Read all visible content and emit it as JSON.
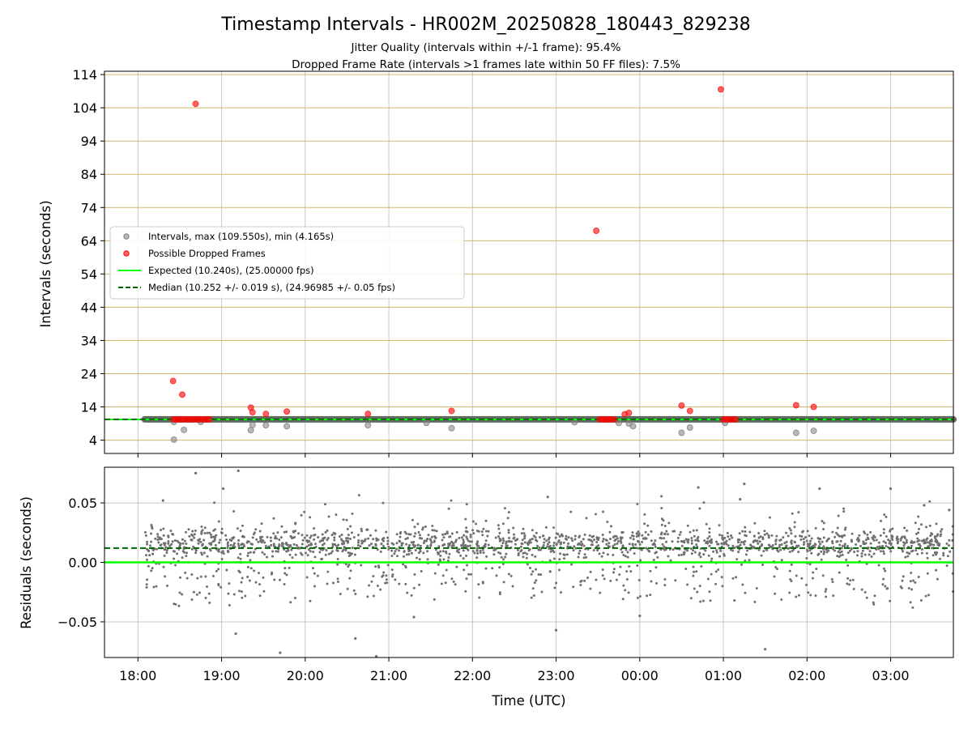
{
  "chart_data": [
    {
      "type": "scatter",
      "title": "Timestamp Intervals - HR002M_20250828_180443_829238",
      "subtitle_lines": [
        "Jitter Quality (intervals within +/-1 frame): 95.4%",
        "Dropped Frame Rate (intervals >1 frames late within 50 FF files): 7.5%"
      ],
      "xlabel": "",
      "ylabel": "Intervals (seconds)",
      "x_unit": "hours_since_18:00_UTC",
      "xlim": [
        -0.4,
        9.75
      ],
      "ylim": [
        0,
        115
      ],
      "yticks": [
        4,
        14,
        24,
        34,
        44,
        54,
        64,
        74,
        84,
        94,
        104,
        114
      ],
      "grid": true,
      "legend_position": "center-left",
      "legend": [
        "Intervals, max (109.550s), min (4.165s)",
        "Possible Dropped Frames",
        "Expected (10.240s), (25.00000 fps)",
        "Median (10.252 +/- 0.019 s), (24.96985 +/- 0.05 fps)"
      ],
      "expected_interval": 10.24,
      "median_interval": 10.252,
      "intervals_band": {
        "x_start": 0.08,
        "x_end": 9.75,
        "value": 10.25
      },
      "intervals_outliers": [
        [
          0.43,
          4.17
        ],
        [
          0.43,
          9.5
        ],
        [
          0.55,
          7.1
        ],
        [
          0.75,
          9.5
        ],
        [
          1.35,
          7.0
        ],
        [
          1.37,
          8.6
        ],
        [
          1.53,
          8.5
        ],
        [
          1.78,
          8.2
        ],
        [
          2.75,
          8.5
        ],
        [
          3.45,
          9.2
        ],
        [
          3.75,
          7.6
        ],
        [
          5.22,
          9.4
        ],
        [
          5.75,
          9.2
        ],
        [
          5.87,
          9.0
        ],
        [
          5.92,
          8.2
        ],
        [
          6.5,
          6.2
        ],
        [
          6.6,
          7.8
        ],
        [
          7.02,
          9.2
        ],
        [
          7.87,
          6.2
        ],
        [
          8.08,
          6.8
        ]
      ],
      "dropped_outliers": [
        [
          0.42,
          21.8
        ],
        [
          0.53,
          17.7
        ],
        [
          0.69,
          105.2
        ],
        [
          1.35,
          13.8
        ],
        [
          1.37,
          12.4
        ],
        [
          1.53,
          11.9
        ],
        [
          1.78,
          12.6
        ],
        [
          2.75,
          11.9
        ],
        [
          3.75,
          12.8
        ],
        [
          5.48,
          67.0
        ],
        [
          5.82,
          11.8
        ],
        [
          5.87,
          12.2
        ],
        [
          6.5,
          14.4
        ],
        [
          6.6,
          12.8
        ],
        [
          6.97,
          109.55
        ],
        [
          7.87,
          14.5
        ],
        [
          8.08,
          14.0
        ]
      ],
      "dropped_clusters": [
        {
          "x_start": 0.42,
          "x_end": 0.88,
          "value": 10.25
        },
        {
          "x_start": 5.52,
          "x_end": 5.7,
          "value": 10.25
        },
        {
          "x_start": 7.0,
          "x_end": 7.17,
          "value": 10.25
        }
      ]
    },
    {
      "type": "scatter",
      "title": "",
      "xlabel": "Time (UTC)",
      "ylabel": "Residuals (seconds)",
      "x_unit": "hours_since_18:00_UTC",
      "xlim": [
        -0.4,
        9.75
      ],
      "ylim": [
        -0.08,
        0.08
      ],
      "yticks": [
        0.05,
        0.0,
        -0.05
      ],
      "ytick_labels": [
        "0.05",
        "0.00",
        "−0.05"
      ],
      "xticks": [
        0,
        1,
        2,
        3,
        4,
        5,
        6,
        7,
        8,
        9
      ],
      "xtick_labels": [
        "18:00",
        "19:00",
        "20:00",
        "21:00",
        "22:00",
        "23:00",
        "00:00",
        "01:00",
        "02:00",
        "03:00"
      ],
      "grid": true,
      "expected_residual": 0.0,
      "median_residual": 0.012,
      "residuals_sample": [
        [
          0.69,
          0.075
        ],
        [
          1.2,
          0.077
        ],
        [
          1.02,
          0.062
        ],
        [
          1.17,
          -0.06
        ],
        [
          1.7,
          -0.076
        ],
        [
          2.6,
          -0.064
        ],
        [
          2.85,
          -0.079
        ],
        [
          3.3,
          -0.046
        ],
        [
          5.0,
          -0.057
        ],
        [
          6.0,
          -0.045
        ],
        [
          7.5,
          -0.073
        ],
        [
          7.25,
          0.066
        ],
        [
          6.7,
          0.063
        ],
        [
          7.2,
          0.053
        ],
        [
          0.3,
          0.052
        ],
        [
          4.9,
          0.055
        ],
        [
          8.15,
          0.062
        ],
        [
          9.0,
          0.062
        ],
        [
          9.4,
          0.048
        ],
        [
          9.7,
          0.044
        ]
      ]
    }
  ],
  "colors": {
    "intervals": "#808080",
    "dropped": "#ff0000",
    "expected": "#00ff00",
    "median": "#006400",
    "hgrid_top": "#d4b66a",
    "grid": "#b0b0b0"
  }
}
